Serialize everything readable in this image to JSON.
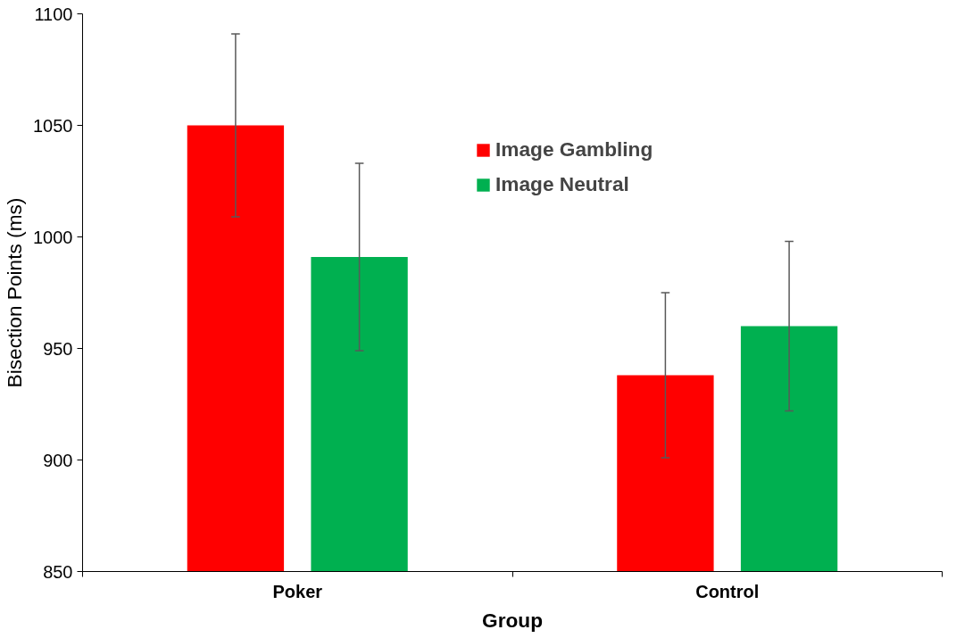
{
  "chart_data": {
    "type": "bar",
    "xlabel": "Group",
    "ylabel": "Bisection Points (ms)",
    "categories": [
      "Poker",
      "Control"
    ],
    "series": [
      {
        "name": "Image Gambling",
        "color": "#ff0000",
        "values": [
          1050,
          938
        ],
        "errors": [
          41,
          37
        ]
      },
      {
        "name": "Image Neutral",
        "color": "#00b050",
        "values": [
          991,
          960
        ],
        "errors": [
          42,
          38
        ]
      }
    ],
    "ylim": [
      850,
      1100
    ],
    "yticks": [
      850,
      900,
      950,
      1000,
      1050,
      1100
    ],
    "grid": false,
    "legend": "top"
  }
}
